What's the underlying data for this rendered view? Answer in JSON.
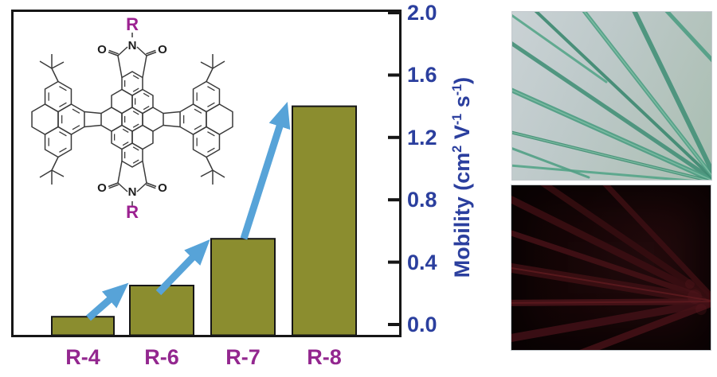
{
  "figure": {
    "background": "#ffffff",
    "description_visible_text_only": true
  },
  "chart_data": {
    "type": "bar",
    "title": "",
    "xlabel": "",
    "ylabel": "Mobility (cm2 V-1 s-1)",
    "ylabel_parts": [
      {
        "t": "Mobility (cm"
      },
      {
        "t": "2",
        "sup": true
      },
      {
        "t": " V"
      },
      {
        "t": "-1",
        "sup": true
      },
      {
        "t": " s"
      },
      {
        "t": "-1",
        "sup": true
      },
      {
        "t": ")"
      }
    ],
    "categories": [
      "R-4",
      "R-6",
      "R-7",
      "R-8"
    ],
    "values": [
      0.05,
      0.25,
      0.55,
      1.4
    ],
    "yticks": [
      0.0,
      0.4,
      0.8,
      1.2,
      1.6,
      2.0
    ],
    "ytick_labels": [
      "0.0",
      "0.4",
      "0.8",
      "1.2",
      "1.6",
      "2.0"
    ],
    "ylim": [
      -0.08,
      2.1
    ],
    "grid": false,
    "legend": "none",
    "annotation": "three blue arrows between successive bar tops indicating increasing mobility from R-4 to R-8"
  },
  "chart_style": {
    "bar_color": "#8b8d2f",
    "bar_edge_color": "#161616",
    "axis_color": "#161616",
    "tick_text_color": "#2b3f9e",
    "axis_title_color": "#2b3f9e",
    "category_text_color": "#93278f",
    "arrow_color": "#57a3d8"
  },
  "molecule": {
    "substituent_label": "R",
    "nitrogen_label": "N",
    "oxygen_label": "O",
    "substituent_color": "#9c2191",
    "atom_color": "#1d1d1d",
    "bond_color": "#3a3a3a",
    "labels_placement": {
      "r_top": "above top imide nitrogen",
      "r_bottom": "below bottom imide nitrogen",
      "n_count": 2,
      "o_count": 4
    }
  },
  "photos": {
    "optical": {
      "subject": "green needle-like crystals fanning from lower right on pale grey-blue background",
      "bg": "#b8c5c2",
      "needle_colors": [
        "#47927a",
        "#4f9e84",
        "#449176",
        "#57a68a",
        "#3f8a72",
        "#52a086"
      ],
      "highlight_color": "#85c3a9"
    },
    "fluorescence": {
      "subject": "dark red fluorescent needle crystals converging at right on near-black background",
      "bg": "#150506",
      "streak_colors": [
        "#3a0e12",
        "#431116",
        "#3c0f13",
        "#471318",
        "#3f1016",
        "#350d10"
      ],
      "highlight_color": "#5e1a1f"
    }
  }
}
